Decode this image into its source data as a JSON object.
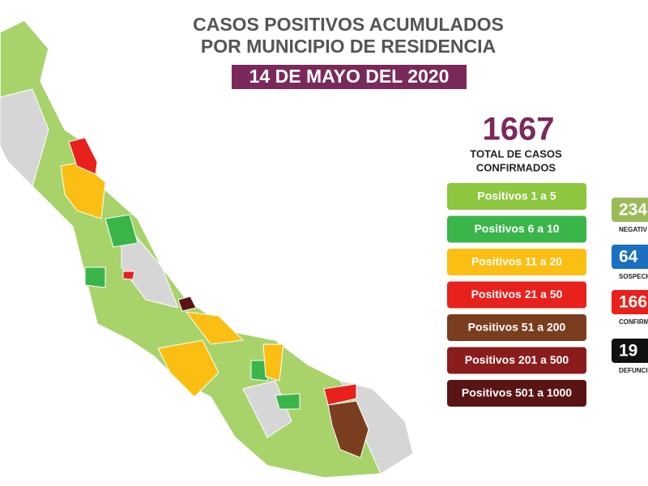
{
  "header": {
    "title_lines": [
      "CASOS POSITIVOS ACUMULADOS",
      "POR MUNICIPIO DE RESIDENCIA"
    ],
    "date": "14 DE MAYO DEL 2020"
  },
  "total": {
    "number": "1667",
    "label_lines": [
      "TOTAL DE CASOS",
      "CONFIRMADOS"
    ]
  },
  "legend": [
    {
      "label": "Positivos 1 a 5",
      "color": "#8dc63f"
    },
    {
      "label": "Positivos 6 a 10",
      "color": "#39b54a"
    },
    {
      "label": "Positivos 11 a 20",
      "color": "#fbbf14"
    },
    {
      "label": "Positivos 21 a 50",
      "color": "#e8211c"
    },
    {
      "label": "Positivos 51 a 200",
      "color": "#7a3e1f"
    },
    {
      "label": "Positivos 201 a 500",
      "color": "#8a1c1c"
    },
    {
      "label": "Positivos 501 a 1000",
      "color": "#5a1414"
    }
  ],
  "stats": [
    {
      "number": "234",
      "label": "NEGATIV",
      "color": "#9bbb59"
    },
    {
      "number": "64",
      "label": "SOSPECH",
      "color": "#1a6fc0"
    },
    {
      "number": "166",
      "label": "CONFIRM",
      "color": "#e8211c"
    },
    {
      "number": "19",
      "label": "DEFUNCIO",
      "color": "#111111"
    }
  ]
}
